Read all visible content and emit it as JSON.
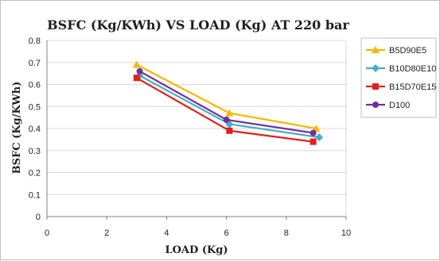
{
  "chart_data": {
    "type": "line",
    "title": "BSFC (Kg/KWh) VS LOAD (Kg) AT 220 bar",
    "xlabel": "LOAD (Kg)",
    "ylabel": "BSFC (Kg/KWh)",
    "xlim": [
      0,
      10
    ],
    "ylim": [
      0,
      0.8
    ],
    "xticks": [
      0,
      2,
      4,
      6,
      8,
      10
    ],
    "yticks": [
      0,
      0.1,
      0.2,
      0.3,
      0.4,
      0.5,
      0.6,
      0.7,
      0.8
    ],
    "grid": true,
    "legend_position": "right",
    "series": [
      {
        "name": "B5D90E5",
        "color": "#f5b800",
        "marker": "triangle",
        "x": [
          3.0,
          6.1,
          9.0
        ],
        "y": [
          0.69,
          0.47,
          0.4
        ]
      },
      {
        "name": "B10D80E10",
        "color": "#4bacc6",
        "marker": "diamond",
        "x": [
          3.1,
          6.1,
          9.1
        ],
        "y": [
          0.64,
          0.42,
          0.36
        ]
      },
      {
        "name": "B15D70E15",
        "color": "#e0201b",
        "marker": "square",
        "x": [
          3.0,
          6.1,
          8.9
        ],
        "y": [
          0.63,
          0.39,
          0.34
        ]
      },
      {
        "name": "D100",
        "color": "#7030a0",
        "marker": "circle",
        "x": [
          3.1,
          6.0,
          8.9
        ],
        "y": [
          0.66,
          0.44,
          0.38
        ]
      }
    ]
  }
}
